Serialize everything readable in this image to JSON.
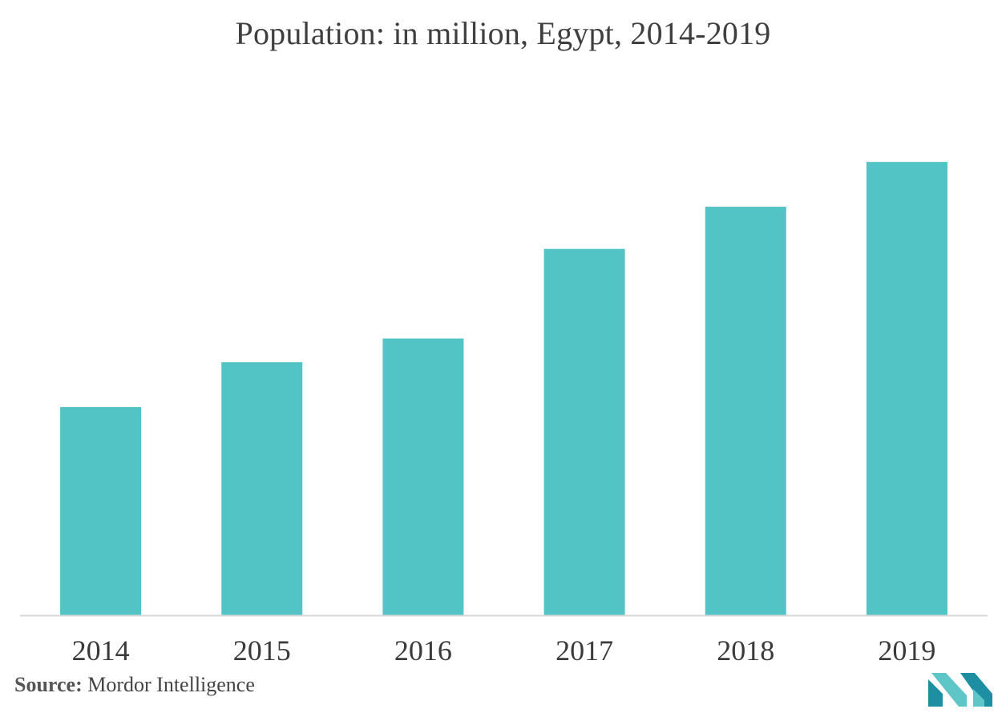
{
  "chart_data": {
    "type": "bar",
    "title": "Population: in million, Egypt, 2014-2019",
    "xlabel": "",
    "ylabel": "",
    "categories": [
      "2014",
      "2015",
      "2016",
      "2017",
      "2018",
      "2019"
    ],
    "values": [
      87.9,
      89.6,
      90.5,
      93.9,
      95.5,
      97.2
    ],
    "ylim": [
      80.0,
      100.0
    ],
    "grid": false,
    "legend": "none",
    "bar_color": "#52c4c6",
    "axis_color": "#d9d9d9"
  },
  "footer": {
    "source_key": "Source:",
    "source_value": "Mordor Intelligence"
  },
  "logo": {
    "icon": "mordor-intelligence-logo",
    "colors": [
      "#1e8fa3",
      "#5fc6c7"
    ]
  }
}
